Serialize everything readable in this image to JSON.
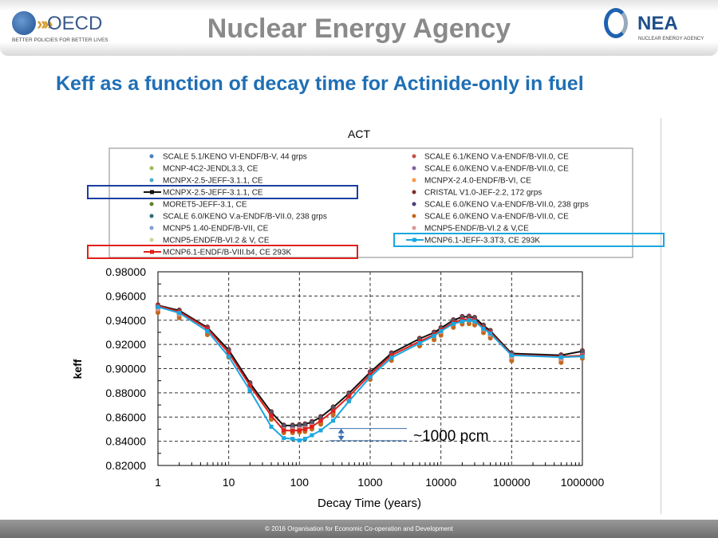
{
  "header": {
    "oecd_word": "OECD",
    "oecd_tagline": "BETTER POLICIES FOR BETTER LIVES",
    "agency_title": "Nuclear Energy Agency",
    "nea_word": "NEA",
    "nea_tagline": "NUCLEAR ENERGY AGENCY"
  },
  "slide_title": "Keff as a function of decay time for Actinide-only in fuel",
  "footer": "© 2016 Organisation for Economic Co-operation and Development",
  "chart_data": {
    "type": "scatter",
    "title": "ACT",
    "xlabel": "Decay Time (years)",
    "ylabel": "keff",
    "xscale": "log",
    "xlim": [
      1,
      1000000
    ],
    "ylim": [
      0.82,
      0.98
    ],
    "xticks": [
      "1",
      "10",
      "100",
      "1000",
      "10000",
      "100000",
      "1000000"
    ],
    "yticks": [
      "0.98000",
      "0.96000",
      "0.94000",
      "0.92000",
      "0.90000",
      "0.88000",
      "0.86000",
      "0.84000",
      "0.82000"
    ],
    "grid": true,
    "legend_position": "top",
    "x": [
      1,
      2,
      5,
      10,
      20,
      40,
      60,
      80,
      100,
      120,
      150,
      200,
      300,
      500,
      1000,
      2000,
      5000,
      8000,
      10000,
      15000,
      20000,
      25000,
      30000,
      40000,
      50000,
      100000,
      500000,
      1000000
    ],
    "line_series": [
      {
        "name": "MCNPX-2.5-JEFF-3.1.1, CE",
        "color": "#111111",
        "marker": "circle",
        "highlight": "#1a3fa0",
        "values": [
          0.9523,
          0.948,
          0.934,
          0.9154,
          0.888,
          0.864,
          0.853,
          0.853,
          0.8535,
          0.854,
          0.856,
          0.86,
          0.868,
          0.8795,
          0.897,
          0.9127,
          0.9247,
          0.9298,
          0.9335,
          0.94,
          0.9427,
          0.943,
          0.942,
          0.9356,
          0.9312,
          0.9125,
          0.911,
          0.9144
        ]
      },
      {
        "name": "MCNP6.1-ENDF/B-VIII.b4, CE 293K",
        "color": "#e0201b",
        "marker": "square",
        "highlight": "#e0201b",
        "values": [
          0.952,
          0.947,
          0.933,
          0.913,
          0.886,
          0.861,
          0.849,
          0.8487,
          0.849,
          0.85,
          0.852,
          0.857,
          0.865,
          0.877,
          0.895,
          0.911,
          0.9225,
          0.928,
          0.932,
          0.938,
          0.9405,
          0.941,
          0.94,
          0.934,
          0.93,
          0.9115,
          0.91,
          0.9108
        ]
      },
      {
        "name": "MCNP6.1-JEFF-3.3T3, CE 293K",
        "color": "#1aa7e0",
        "marker": "square",
        "highlight": "#1aa7e0",
        "values": [
          0.951,
          0.946,
          0.931,
          0.91,
          0.882,
          0.852,
          0.8426,
          0.842,
          0.8407,
          0.842,
          0.845,
          0.849,
          0.857,
          0.873,
          0.893,
          0.909,
          0.921,
          0.927,
          0.931,
          0.937,
          0.939,
          0.94,
          0.939,
          0.933,
          0.929,
          0.911,
          0.9095,
          0.91
        ]
      }
    ],
    "scatter_series": [
      {
        "name": "SCALE 5.1/KENO VI-ENDF/B-V, 44 grps",
        "color": "#4a7ebb",
        "offset": -0.002
      },
      {
        "name": "MCNP-4C2-JENDL3.3, CE",
        "color": "#9bbb59",
        "offset": -0.003
      },
      {
        "name": "MCNPX-2.5-JEFF-3.1.1, CE",
        "color": "#4bacc6",
        "offset": -0.001
      },
      {
        "name": "MORET5-JEFF-3.1, CE",
        "color": "#5b7f2e",
        "offset": -0.0015
      },
      {
        "name": "SCALE 6.0/KENO V.a-ENDF/B-VII.0, 238 grps",
        "color": "#2e6b7a",
        "offset": 0.0005
      },
      {
        "name": "MCNP5 1.40-ENDF/B-VII, CE",
        "color": "#7e9fd0",
        "offset": 0.001
      },
      {
        "name": "MCNP5-ENDF/B-VI.2 & V, CE",
        "color": "#c3d69b",
        "offset": -0.004
      },
      {
        "name": "SCALE 6.1/KENO V.a-ENDF/B-VII.0, CE",
        "color": "#c0504d",
        "offset": -0.0025
      },
      {
        "name": "SCALE 6.0/KENO V.a-ENDF/B-VII.0, CE",
        "color": "#8064a2",
        "offset": 0.0
      },
      {
        "name": "MCNPX-2.4.0-ENDF/B-VI, CE",
        "color": "#f79646",
        "offset": -0.0035
      },
      {
        "name": "CRISTAL V1.0-JEF-2.2, 172 grps",
        "color": "#7b2c2c",
        "offset": 0.0015
      },
      {
        "name": "SCALE 6.0/KENO V.a-ENDF/B-VII.0, 238 grps",
        "color": "#4d3b73",
        "offset": -0.0005
      },
      {
        "name": "SCALE 6.0/KENO V.a-ENDF/B-VII.0, CE",
        "color": "#c2691f",
        "offset": -0.005
      },
      {
        "name": "MCNP5-ENDF/B-VI.2 & V,CE",
        "color": "#d99694",
        "offset": -0.002
      }
    ],
    "legend_left": [
      {
        "name": "SCALE 5.1/KENO VI-ENDF/B-V, 44 grps",
        "color": "#4a7ebb",
        "type": "dot"
      },
      {
        "name": "MCNP-4C2-JENDL3.3, CE",
        "color": "#9bbb59",
        "type": "dot"
      },
      {
        "name": "MCNPX-2.5-JEFF-3.1.1, CE",
        "color": "#4bacc6",
        "type": "dot"
      },
      {
        "name": "MCNPX-2.5-JEFF-3.1.1, CE",
        "color": "#111111",
        "type": "line",
        "box": "#1a3fa0"
      },
      {
        "name": "MORET5-JEFF-3.1, CE",
        "color": "#5b7f2e",
        "type": "dot"
      },
      {
        "name": "SCALE 6.0/KENO V.a-ENDF/B-VII.0, 238 grps",
        "color": "#2e6b7a",
        "type": "dot"
      },
      {
        "name": "MCNP5 1.40-ENDF/B-VII, CE",
        "color": "#7e9fd0",
        "type": "dot"
      },
      {
        "name": "MCNP5-ENDF/B-VI.2 & V, CE",
        "color": "#c3d69b",
        "type": "dot"
      },
      {
        "name": "MCNP6.1-ENDF/B-VIII.b4, CE 293K",
        "color": "#e0201b",
        "type": "line",
        "box": "#e0201b"
      }
    ],
    "legend_right": [
      {
        "name": "SCALE 6.1/KENO V.a-ENDF/B-VII.0, CE",
        "color": "#c0504d",
        "type": "dot"
      },
      {
        "name": "SCALE 6.0/KENO V.a-ENDF/B-VII.0, CE",
        "color": "#8064a2",
        "type": "dot"
      },
      {
        "name": "MCNPX-2.4.0-ENDF/B-VI, CE",
        "color": "#f79646",
        "type": "dot"
      },
      {
        "name": "CRISTAL V1.0-JEF-2.2, 172 grps",
        "color": "#7b2c2c",
        "type": "dot"
      },
      {
        "name": "SCALE 6.0/KENO V.a-ENDF/B-VII.0, 238 grps",
        "color": "#4d3b73",
        "type": "dot"
      },
      {
        "name": "SCALE 6.0/KENO V.a-ENDF/B-VII.0, CE",
        "color": "#c2691f",
        "type": "dot"
      },
      {
        "name": "MCNP5-ENDF/B-VI.2 & V,CE",
        "color": "#d99694",
        "type": "dot"
      },
      {
        "name": "MCNP6.1-JEFF-3.3T3, CE 293K",
        "color": "#1aa7e0",
        "type": "line",
        "box": "#1aa7e0"
      }
    ],
    "annotation": {
      "text": "~1000 pcm",
      "y_upper": 0.8505,
      "y_lower": 0.8405,
      "x_arrow": 300
    }
  }
}
